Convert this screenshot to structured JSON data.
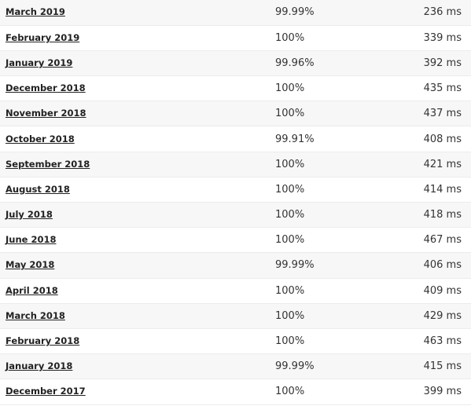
{
  "table": {
    "rows": [
      [
        "March 2019",
        "99.99%",
        "236 ms"
      ],
      [
        "February 2019",
        "100%",
        "339 ms"
      ],
      [
        "January 2019",
        "99.96%",
        "392 ms"
      ],
      [
        "December 2018",
        "100%",
        "435 ms"
      ],
      [
        "November 2018",
        "100%",
        "437 ms"
      ],
      [
        "October 2018",
        "99.91%",
        "408 ms"
      ],
      [
        "September 2018",
        "100%",
        "421 ms"
      ],
      [
        "August 2018",
        "100%",
        "414 ms"
      ],
      [
        "July 2018",
        "100%",
        "418 ms"
      ],
      [
        "June 2018",
        "100%",
        "467 ms"
      ],
      [
        "May 2018",
        "99.99%",
        "406 ms"
      ],
      [
        "April 2018",
        "100%",
        "409 ms"
      ],
      [
        "March 2018",
        "100%",
        "429 ms"
      ],
      [
        "February 2018",
        "100%",
        "463 ms"
      ],
      [
        "January 2018",
        "99.99%",
        "415 ms"
      ],
      [
        "December 2017",
        "100%",
        "399 ms"
      ]
    ]
  }
}
